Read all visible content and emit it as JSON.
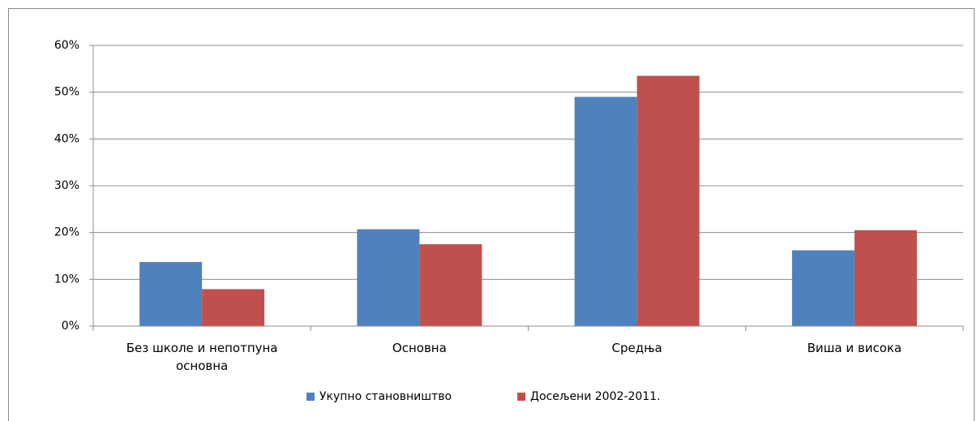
{
  "chart_data": {
    "type": "bar",
    "categories": [
      "Без школе и непотпуна основна",
      "Основна",
      "Средња",
      "Виша и висока"
    ],
    "series": [
      {
        "name": "Укупно становништво",
        "color": "#4f81bd",
        "values": [
          13.7,
          20.7,
          49.0,
          16.2
        ]
      },
      {
        "name": "Досељени 2002-2011.",
        "color": "#c0504d",
        "values": [
          7.9,
          17.5,
          53.5,
          20.5
        ]
      }
    ],
    "ylim": [
      0,
      60
    ],
    "yticks": [
      {
        "value": 0,
        "label": "0%"
      },
      {
        "value": 10,
        "label": "10%"
      },
      {
        "value": 20,
        "label": "20%"
      },
      {
        "value": 30,
        "label": "30%"
      },
      {
        "value": 40,
        "label": "40%"
      },
      {
        "value": 50,
        "label": "50%"
      },
      {
        "value": 60,
        "label": "60%"
      }
    ],
    "grid": true,
    "legend": "bottom"
  }
}
